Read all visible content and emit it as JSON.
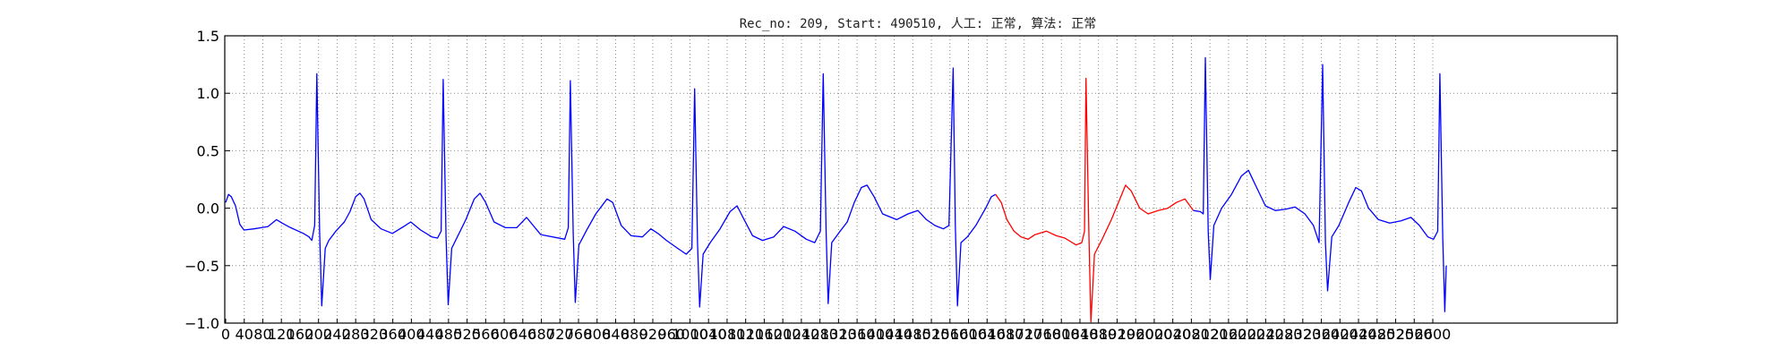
{
  "chart_data": {
    "type": "line",
    "title": "Rec_no: 209, Start: 490510, 人工: 正常, 算法: 正常",
    "xlabel": "",
    "ylabel": "",
    "xlim": [
      0,
      1728
    ],
    "ylim": [
      -1.0,
      1.5
    ],
    "grid": "dotted",
    "yticks": [
      -1.0,
      -0.5,
      0.0,
      0.5,
      1.0,
      1.5
    ],
    "ytick_labels": [
      "−1.0",
      "−0.5",
      "0.0",
      "0.5",
      "1.0",
      "1.5"
    ],
    "xtick_labels": [
      "0",
      "40",
      "80",
      "120",
      "160",
      "200",
      "240",
      "280",
      "320",
      "360",
      "400",
      "440",
      "480",
      "520",
      "560",
      "600",
      "640",
      "680",
      "720",
      "760",
      "800",
      "840",
      "880",
      "920",
      "960",
      "1000",
      "1040",
      "1080",
      "1120",
      "1160",
      "1200",
      "1240",
      "1280",
      "1320",
      "1360",
      "1400",
      "1440",
      "1480",
      "1520",
      "1560",
      "1600",
      "1640",
      "1680",
      "1720",
      "1760",
      "1800",
      "1840",
      "1880",
      "1920",
      "1960",
      "2000",
      "2040",
      "2080",
      "2120",
      "2160",
      "2200",
      "2240",
      "2280",
      "2320",
      "2360",
      "2400",
      "2440",
      "2480",
      "2520",
      "2560",
      "2600"
    ],
    "colors": {
      "normal": "#0000ff",
      "highlight": "#ff0000",
      "grid": "#888888",
      "axes": "#000000"
    },
    "highlight_range": [
      1093,
      1375
    ],
    "series": [
      {
        "style": "ecg",
        "points": [
          [
            0,
            0.05
          ],
          [
            4,
            0.12
          ],
          [
            8,
            0.1
          ],
          [
            14,
            0.02
          ],
          [
            20,
            -0.14
          ],
          [
            26,
            -0.19
          ],
          [
            40,
            -0.18
          ],
          [
            60,
            -0.16
          ],
          [
            72,
            -0.1
          ],
          [
            80,
            -0.13
          ],
          [
            92,
            -0.17
          ],
          [
            110,
            -0.22
          ],
          [
            118,
            -0.25
          ],
          [
            122,
            -0.28
          ],
          [
            126,
            -0.15
          ],
          [
            129,
            1.17
          ],
          [
            133,
            -0.2
          ],
          [
            136,
            -0.85
          ],
          [
            141,
            -0.35
          ],
          [
            146,
            -0.28
          ],
          [
            156,
            -0.2
          ],
          [
            168,
            -0.12
          ],
          [
            176,
            -0.03
          ],
          [
            184,
            0.1
          ],
          [
            190,
            0.13
          ],
          [
            196,
            0.08
          ],
          [
            206,
            -0.1
          ],
          [
            220,
            -0.18
          ],
          [
            236,
            -0.22
          ],
          [
            252,
            -0.16
          ],
          [
            262,
            -0.12
          ],
          [
            276,
            -0.19
          ],
          [
            292,
            -0.25
          ],
          [
            300,
            -0.26
          ],
          [
            305,
            -0.2
          ],
          [
            308,
            1.12
          ],
          [
            312,
            -0.25
          ],
          [
            315,
            -0.84
          ],
          [
            320,
            -0.35
          ],
          [
            328,
            -0.25
          ],
          [
            340,
            -0.1
          ],
          [
            352,
            0.08
          ],
          [
            360,
            0.13
          ],
          [
            368,
            0.05
          ],
          [
            380,
            -0.12
          ],
          [
            396,
            -0.17
          ],
          [
            412,
            -0.17
          ],
          [
            426,
            -0.08
          ],
          [
            434,
            -0.14
          ],
          [
            446,
            -0.23
          ],
          [
            480,
            -0.27
          ],
          [
            485,
            -0.17
          ],
          [
            488,
            1.11
          ],
          [
            492,
            -0.22
          ],
          [
            495,
            -0.82
          ],
          [
            500,
            -0.32
          ],
          [
            512,
            -0.18
          ],
          [
            524,
            -0.05
          ],
          [
            540,
            0.08
          ],
          [
            548,
            0.05
          ],
          [
            560,
            -0.15
          ],
          [
            574,
            -0.24
          ],
          [
            590,
            -0.25
          ],
          [
            602,
            -0.18
          ],
          [
            612,
            -0.22
          ],
          [
            624,
            -0.28
          ],
          [
            640,
            -0.35
          ],
          [
            652,
            -0.4
          ],
          [
            660,
            -0.35
          ],
          [
            664,
            1.04
          ],
          [
            668,
            -0.3
          ],
          [
            671,
            -0.86
          ],
          [
            676,
            -0.4
          ],
          [
            686,
            -0.3
          ],
          [
            700,
            -0.18
          ],
          [
            714,
            -0.03
          ],
          [
            724,
            0.02
          ],
          [
            734,
            -0.1
          ],
          [
            746,
            -0.24
          ],
          [
            760,
            -0.28
          ],
          [
            776,
            -0.25
          ],
          [
            790,
            -0.16
          ],
          [
            806,
            -0.2
          ],
          [
            822,
            -0.27
          ],
          [
            834,
            -0.3
          ],
          [
            842,
            -0.2
          ],
          [
            846,
            1.17
          ],
          [
            850,
            -0.2
          ],
          [
            853,
            -0.83
          ],
          [
            858,
            -0.3
          ],
          [
            870,
            -0.2
          ],
          [
            880,
            -0.12
          ],
          [
            890,
            0.05
          ],
          [
            900,
            0.18
          ],
          [
            908,
            0.2
          ],
          [
            918,
            0.1
          ],
          [
            930,
            -0.05
          ],
          [
            950,
            -0.1
          ],
          [
            966,
            -0.05
          ],
          [
            980,
            -0.02
          ],
          [
            992,
            -0.1
          ],
          [
            1004,
            -0.15
          ],
          [
            1016,
            -0.18
          ],
          [
            1024,
            -0.15
          ],
          [
            1030,
            1.22
          ],
          [
            1033,
            -0.15
          ],
          [
            1036,
            -0.85
          ],
          [
            1041,
            -0.3
          ],
          [
            1050,
            -0.25
          ],
          [
            1062,
            -0.15
          ],
          [
            1076,
            0.0
          ],
          [
            1084,
            0.1
          ],
          [
            1090,
            0.12
          ],
          [
            1098,
            0.05
          ],
          [
            1106,
            -0.1
          ],
          [
            1116,
            -0.2
          ],
          [
            1126,
            -0.25
          ],
          [
            1136,
            -0.27
          ],
          [
            1146,
            -0.23
          ],
          [
            1162,
            -0.2
          ],
          [
            1176,
            -0.24
          ],
          [
            1188,
            -0.26
          ],
          [
            1204,
            -0.32
          ],
          [
            1212,
            -0.3
          ],
          [
            1216,
            -0.2
          ],
          [
            1218,
            1.13
          ],
          [
            1222,
            -0.2
          ],
          [
            1225,
            -0.99
          ],
          [
            1230,
            -0.4
          ],
          [
            1240,
            -0.28
          ],
          [
            1254,
            -0.1
          ],
          [
            1266,
            0.08
          ],
          [
            1274,
            0.2
          ],
          [
            1282,
            0.15
          ],
          [
            1294,
            0.0
          ],
          [
            1306,
            -0.05
          ],
          [
            1320,
            -0.02
          ],
          [
            1334,
            0.0
          ],
          [
            1346,
            0.05
          ],
          [
            1358,
            0.08
          ],
          [
            1370,
            -0.02
          ],
          [
            1380,
            -0.03
          ],
          [
            1384,
            -0.05
          ],
          [
            1387,
            1.31
          ],
          [
            1391,
            -0.2
          ],
          [
            1394,
            -0.62
          ],
          [
            1399,
            -0.15
          ],
          [
            1410,
            0.0
          ],
          [
            1424,
            0.12
          ],
          [
            1438,
            0.28
          ],
          [
            1448,
            0.33
          ],
          [
            1458,
            0.2
          ],
          [
            1472,
            0.02
          ],
          [
            1486,
            -0.02
          ],
          [
            1500,
            -0.01
          ],
          [
            1514,
            0.01
          ],
          [
            1528,
            -0.05
          ],
          [
            1540,
            -0.15
          ],
          [
            1548,
            -0.3
          ],
          [
            1553,
            1.25
          ],
          [
            1557,
            -0.3
          ],
          [
            1560,
            -0.72
          ],
          [
            1566,
            -0.25
          ],
          [
            1576,
            -0.15
          ],
          [
            1590,
            0.05
          ],
          [
            1600,
            0.18
          ],
          [
            1608,
            0.15
          ],
          [
            1618,
            0.0
          ],
          [
            1632,
            -0.1
          ],
          [
            1648,
            -0.13
          ],
          [
            1664,
            -0.11
          ],
          [
            1678,
            -0.08
          ],
          [
            1690,
            -0.15
          ],
          [
            1702,
            -0.25
          ],
          [
            1710,
            -0.27
          ],
          [
            1716,
            -0.2
          ],
          [
            1719,
            1.17
          ],
          [
            1723,
            -0.25
          ],
          [
            1726,
            -0.9
          ],
          [
            1728,
            -0.5
          ]
        ]
      }
    ]
  }
}
